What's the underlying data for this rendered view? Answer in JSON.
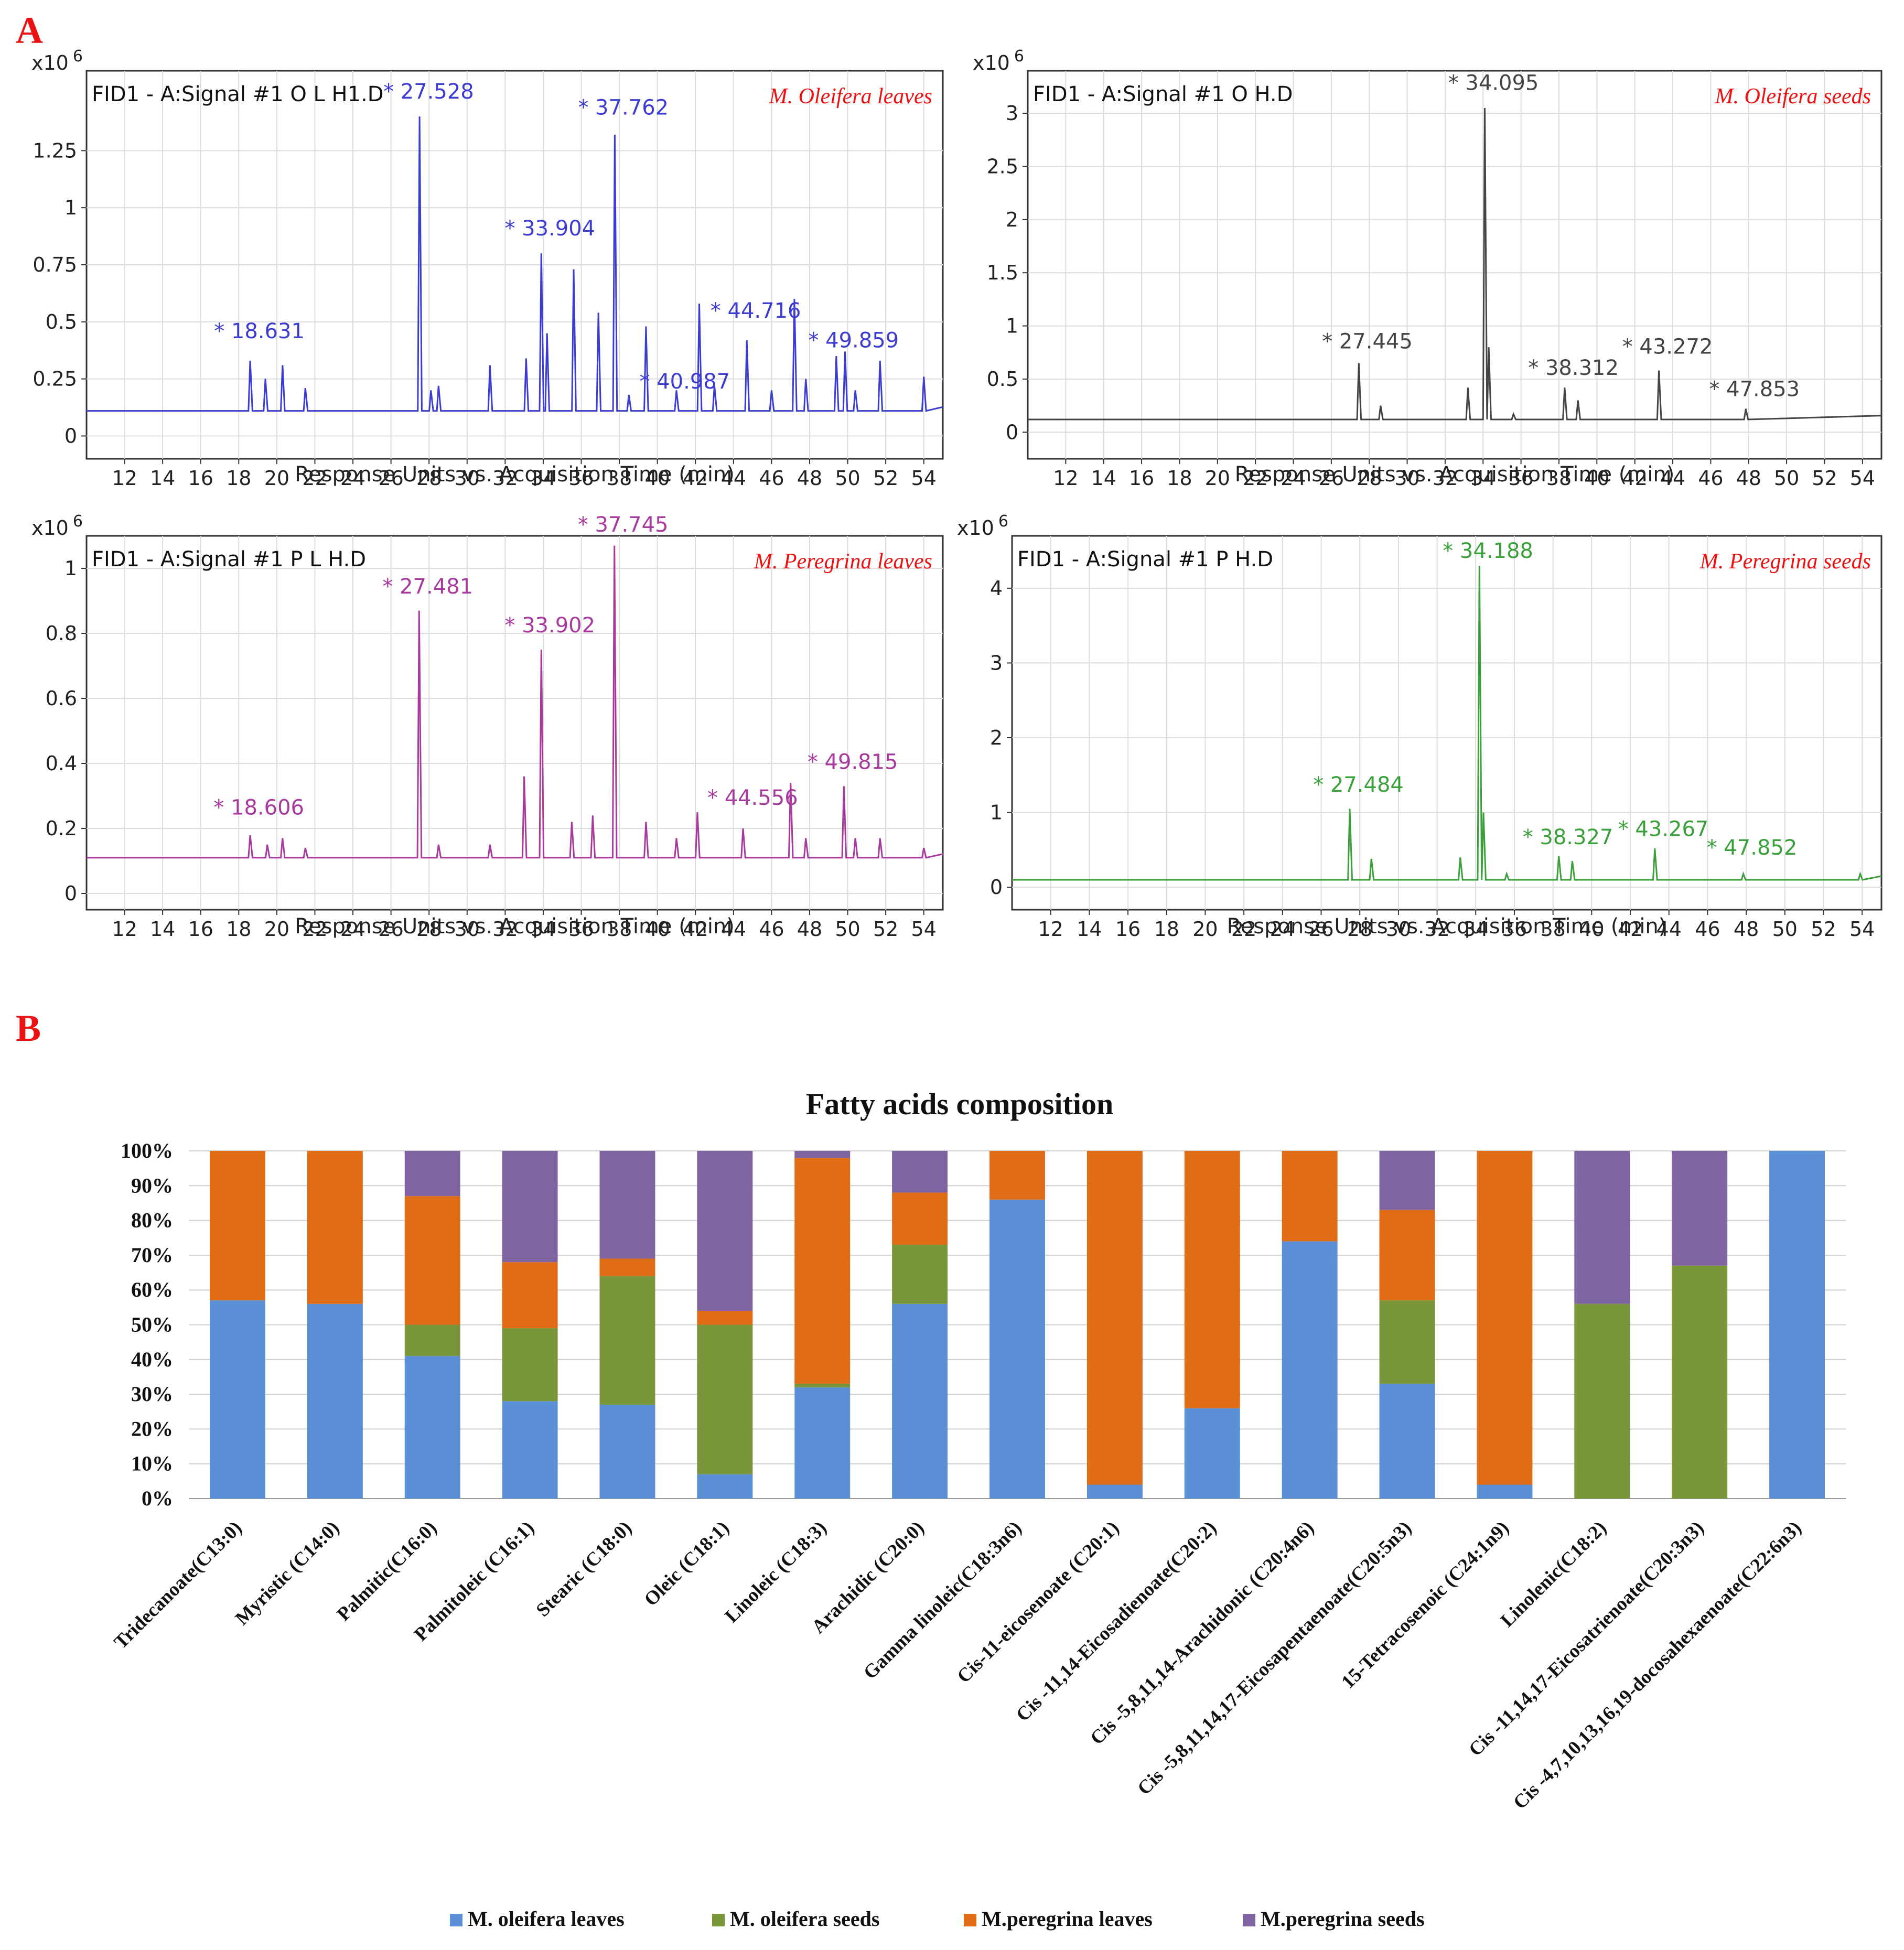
{
  "panel_a": {
    "letter": "A",
    "x_ticks": [
      "12",
      "14",
      "16",
      "18",
      "20",
      "22",
      "24",
      "26",
      "28",
      "30",
      "32",
      "34",
      "36",
      "38",
      "40",
      "42",
      "44",
      "46",
      "48",
      "50",
      "52",
      "54"
    ],
    "multiplier_prefix": "x10",
    "multiplier_exp": "6",
    "xlabel": "Response Units vs. Acquisition Time (min)"
  },
  "chart_data": [
    {
      "type": "line",
      "id": "ol",
      "signal": "FID1 - A:Signal #1 O L H1.D",
      "sample": "M. Oleifera  leaves",
      "color": "#3c3cd2",
      "xlim": [
        10,
        55
      ],
      "ylim": [
        -0.1,
        1.6
      ],
      "yticks": [
        "0",
        "0.25",
        "0.5",
        "0.75",
        "1",
        "1.25"
      ],
      "ytick_values": [
        0,
        0.25,
        0.5,
        0.75,
        1,
        1.25
      ],
      "baseline": 0.11,
      "peaks": [
        [
          18.6,
          0.33
        ],
        [
          19.4,
          0.25
        ],
        [
          20.3,
          0.31
        ],
        [
          21.5,
          0.21
        ],
        [
          27.5,
          1.4
        ],
        [
          28.1,
          0.2
        ],
        [
          28.5,
          0.22
        ],
        [
          31.2,
          0.31
        ],
        [
          33.1,
          0.34
        ],
        [
          33.9,
          0.8
        ],
        [
          34.2,
          0.45
        ],
        [
          35.6,
          0.73
        ],
        [
          36.9,
          0.54
        ],
        [
          37.76,
          1.32
        ],
        [
          38.5,
          0.18
        ],
        [
          39.4,
          0.48
        ],
        [
          41.0,
          0.2
        ],
        [
          42.2,
          0.58
        ],
        [
          43.0,
          0.22
        ],
        [
          44.7,
          0.42
        ],
        [
          46.0,
          0.2
        ],
        [
          47.2,
          0.6
        ],
        [
          47.8,
          0.25
        ],
        [
          49.4,
          0.35
        ],
        [
          49.86,
          0.37
        ],
        [
          50.4,
          0.2
        ],
        [
          51.7,
          0.33
        ],
        [
          54.0,
          0.26
        ]
      ],
      "labels": [
        [
          "* 18.631",
          18.631,
          0.41
        ],
        [
          "* 27.528",
          27.528,
          1.46
        ],
        [
          "* 33.904",
          33.904,
          0.86
        ],
        [
          "* 37.762",
          37.762,
          1.39
        ],
        [
          "* 40.987",
          40.987,
          0.19
        ],
        [
          "* 44.716",
          44.716,
          0.5
        ],
        [
          "* 49.859",
          49.859,
          0.37
        ]
      ]
    },
    {
      "type": "line",
      "id": "os",
      "signal": "FID1 - A:Signal #1 O H.D",
      "sample": "M. Oleifera  seeds",
      "color": "#444444",
      "xlim": [
        10,
        55
      ],
      "ylim": [
        -0.25,
        3.4
      ],
      "yticks": [
        "0",
        "0.5",
        "1",
        "1.5",
        "2",
        "2.5",
        "3"
      ],
      "ytick_values": [
        0,
        0.5,
        1,
        1.5,
        2,
        2.5,
        3
      ],
      "baseline": 0.12,
      "peaks": [
        [
          27.45,
          0.65
        ],
        [
          28.6,
          0.25
        ],
        [
          33.2,
          0.42
        ],
        [
          34.09,
          3.05
        ],
        [
          34.3,
          0.8
        ],
        [
          35.6,
          0.17
        ],
        [
          38.3,
          0.42
        ],
        [
          39.0,
          0.3
        ],
        [
          43.27,
          0.58
        ],
        [
          47.85,
          0.22
        ]
      ],
      "labels": [
        [
          "* 34.095",
          34.095,
          3.18
        ],
        [
          "* 27.445",
          27.445,
          0.75
        ],
        [
          "* 38.312",
          38.312,
          0.5
        ],
        [
          "* 43.272",
          43.272,
          0.7
        ],
        [
          "* 47.853",
          47.853,
          0.3
        ]
      ]
    },
    {
      "type": "line",
      "id": "pl",
      "signal": "FID1 - A:Signal #1 P L H.D",
      "sample": "M. Peregrina leaves",
      "color": "#a83a9e",
      "xlim": [
        10,
        55
      ],
      "ylim": [
        -0.05,
        1.1
      ],
      "yticks": [
        "0",
        "0.2",
        "0.4",
        "0.6",
        "0.8",
        "1"
      ],
      "ytick_values": [
        0,
        0.2,
        0.4,
        0.6,
        0.8,
        1
      ],
      "baseline": 0.11,
      "peaks": [
        [
          18.6,
          0.18
        ],
        [
          19.5,
          0.15
        ],
        [
          20.3,
          0.17
        ],
        [
          21.5,
          0.14
        ],
        [
          27.48,
          0.87
        ],
        [
          28.5,
          0.15
        ],
        [
          31.2,
          0.15
        ],
        [
          33.0,
          0.36
        ],
        [
          33.9,
          0.75
        ],
        [
          35.5,
          0.22
        ],
        [
          36.6,
          0.24
        ],
        [
          37.74,
          1.07
        ],
        [
          39.4,
          0.22
        ],
        [
          41.0,
          0.17
        ],
        [
          42.1,
          0.25
        ],
        [
          44.5,
          0.2
        ],
        [
          47.0,
          0.34
        ],
        [
          47.8,
          0.17
        ],
        [
          49.8,
          0.33
        ],
        [
          50.4,
          0.17
        ],
        [
          51.7,
          0.17
        ],
        [
          54.0,
          0.14
        ]
      ],
      "labels": [
        [
          "* 18.606",
          18.606,
          0.23
        ],
        [
          "* 27.481",
          27.481,
          0.91
        ],
        [
          "* 33.902",
          33.902,
          0.79
        ],
        [
          "* 37.745",
          37.745,
          1.1
        ],
        [
          "* 44.556",
          44.556,
          0.26
        ],
        [
          "* 49.815",
          49.815,
          0.37
        ]
      ]
    },
    {
      "type": "line",
      "id": "ps",
      "signal": "FID1 - A:Signal #1 P H.D",
      "sample": "M. Peregrina seeds",
      "color": "#3aa03a",
      "xlim": [
        10,
        55
      ],
      "ylim": [
        -0.3,
        4.7
      ],
      "yticks": [
        "0",
        "1",
        "2",
        "3",
        "4"
      ],
      "ytick_values": [
        0,
        1,
        2,
        3,
        4
      ],
      "baseline": 0.1,
      "peaks": [
        [
          27.48,
          1.05
        ],
        [
          28.6,
          0.38
        ],
        [
          33.2,
          0.4
        ],
        [
          34.19,
          4.3
        ],
        [
          34.4,
          1.0
        ],
        [
          35.6,
          0.18
        ],
        [
          38.3,
          0.42
        ],
        [
          39.0,
          0.35
        ],
        [
          43.27,
          0.52
        ],
        [
          47.85,
          0.18
        ],
        [
          53.9,
          0.18
        ]
      ],
      "labels": [
        [
          "* 34.188",
          34.188,
          4.35
        ],
        [
          "* 27.484",
          27.484,
          1.22
        ],
        [
          "* 38.327",
          38.327,
          0.52
        ],
        [
          "* 43.267",
          43.267,
          0.63
        ],
        [
          "* 47.852",
          47.852,
          0.38
        ]
      ]
    },
    {
      "type": "bar",
      "stacked": true,
      "letter": "B",
      "title": "Fatty acids composition",
      "ylabel_ticks": [
        "0%",
        "10%",
        "20%",
        "30%",
        "40%",
        "50%",
        "60%",
        "70%",
        "80%",
        "90%",
        "100%"
      ],
      "ylim": [
        0,
        100
      ],
      "categories": [
        "Tridecanoate(C13:0)",
        "Myristic (C14:0)",
        "Palmitic(C16:0)",
        "Palmitoleic (C16:1)",
        "Stearic (C18:0)",
        "Oleic  (C18:1)",
        "Linoleic  (C18:3)",
        "Arachidic  (C20:0)",
        "Gamma linoleic(C18:3n6)",
        "Cis-11-eicosenoate (C20:1)",
        "Cis -11,14-Eicosadienoate(C20:2)",
        "Cis -5,8,11,14-Arachidonic  (C20:4n6)",
        "Cis -5,8,11,14,17-Eicosapentaenoate(C20:5n3)",
        "15-Tetracosenoic (C24:1n9)",
        "Linolenic(C18:2)",
        "Cis -11,14,17-Eicosatrienoate(C20:3n3)",
        "Cis -4,7,10,13,16,19-docosahexaenoate(C22:6n3)"
      ],
      "series": [
        {
          "name": "M. oleifera leaves",
          "color": "#5b8fd6",
          "values": [
            57,
            56,
            41,
            28,
            27,
            7,
            32,
            56,
            86,
            4,
            26,
            74,
            33,
            4,
            0,
            0,
            100
          ]
        },
        {
          "name": "M. oleifera seeds",
          "color": "#7a963a",
          "values": [
            0,
            0,
            9,
            21,
            37,
            43,
            1,
            17,
            0,
            0,
            0,
            0,
            24,
            0,
            56,
            67,
            0
          ]
        },
        {
          "name": "M.peregrina leaves",
          "color": "#e06d16",
          "values": [
            43,
            44,
            37,
            19,
            5,
            4,
            65,
            15,
            14,
            96,
            74,
            26,
            26,
            96,
            0,
            0,
            0
          ]
        },
        {
          "name": "M.peregrina  seeds",
          "color": "#8064a2",
          "values": [
            0,
            0,
            13,
            32,
            31,
            46,
            2,
            12,
            0,
            0,
            0,
            0,
            17,
            0,
            44,
            33,
            0
          ]
        }
      ],
      "legend_position": "bottom"
    }
  ]
}
